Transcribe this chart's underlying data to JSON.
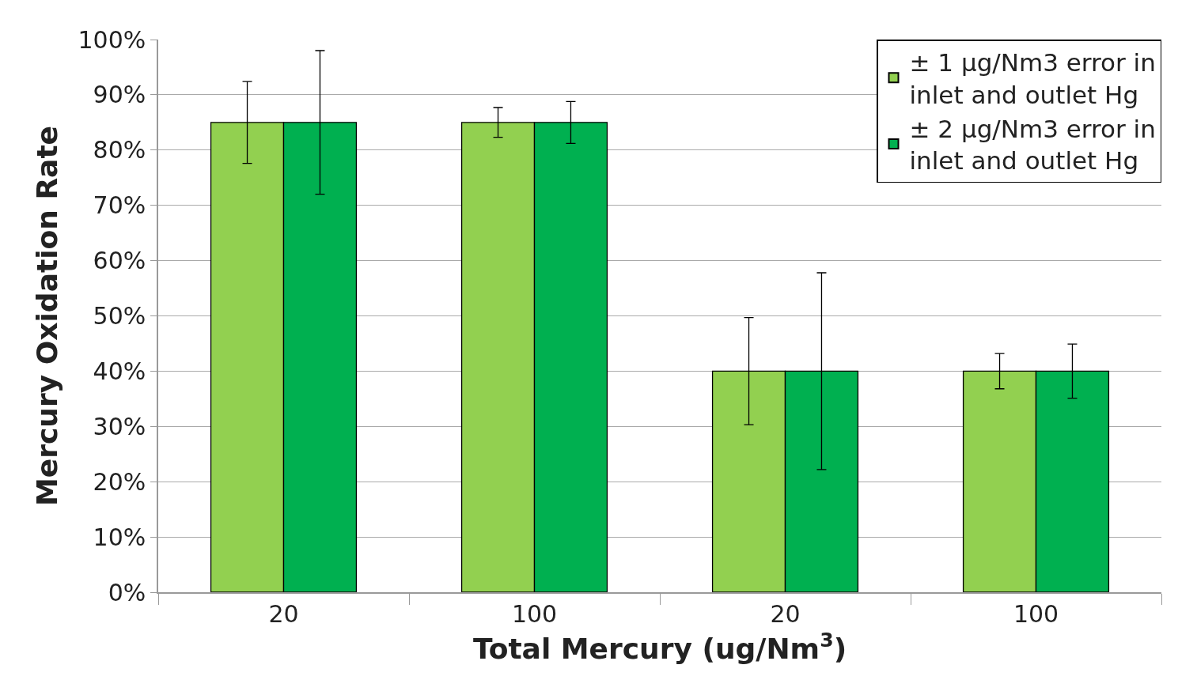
{
  "chart_data": {
    "type": "bar",
    "xlabel": "Total Mercury (ug/Nm$^{3}$)",
    "ylabel": "Mercury Oxidation Rate",
    "categories": [
      "20",
      "100",
      "20",
      "100"
    ],
    "series": [
      {
        "name": "± 1 µg/Nm3 error in inlet and outlet Hg",
        "color": "#92d050",
        "values": [
          85,
          85,
          40,
          40
        ],
        "errors": [
          7.4,
          2.7,
          9.7,
          3.2
        ]
      },
      {
        "name": "± 2 µg/Nm3 error in inlet and outlet Hg",
        "color": "#00b050",
        "values": [
          85,
          85,
          40,
          40
        ],
        "errors": [
          13,
          3.8,
          17.8,
          4.9
        ]
      }
    ],
    "ylim": [
      0,
      100
    ],
    "yticks": [
      {
        "value": 0,
        "label": "0%"
      },
      {
        "value": 10,
        "label": "10%"
      },
      {
        "value": 20,
        "label": "20%"
      },
      {
        "value": 30,
        "label": "30%"
      },
      {
        "value": 40,
        "label": "40%"
      },
      {
        "value": 50,
        "label": "50%"
      },
      {
        "value": 60,
        "label": "60%"
      },
      {
        "value": 70,
        "label": "70%"
      },
      {
        "value": 80,
        "label": "80%"
      },
      {
        "value": 90,
        "label": "90%"
      },
      {
        "value": 100,
        "label": "100%"
      }
    ],
    "grid": "y",
    "legend": "top right"
  }
}
